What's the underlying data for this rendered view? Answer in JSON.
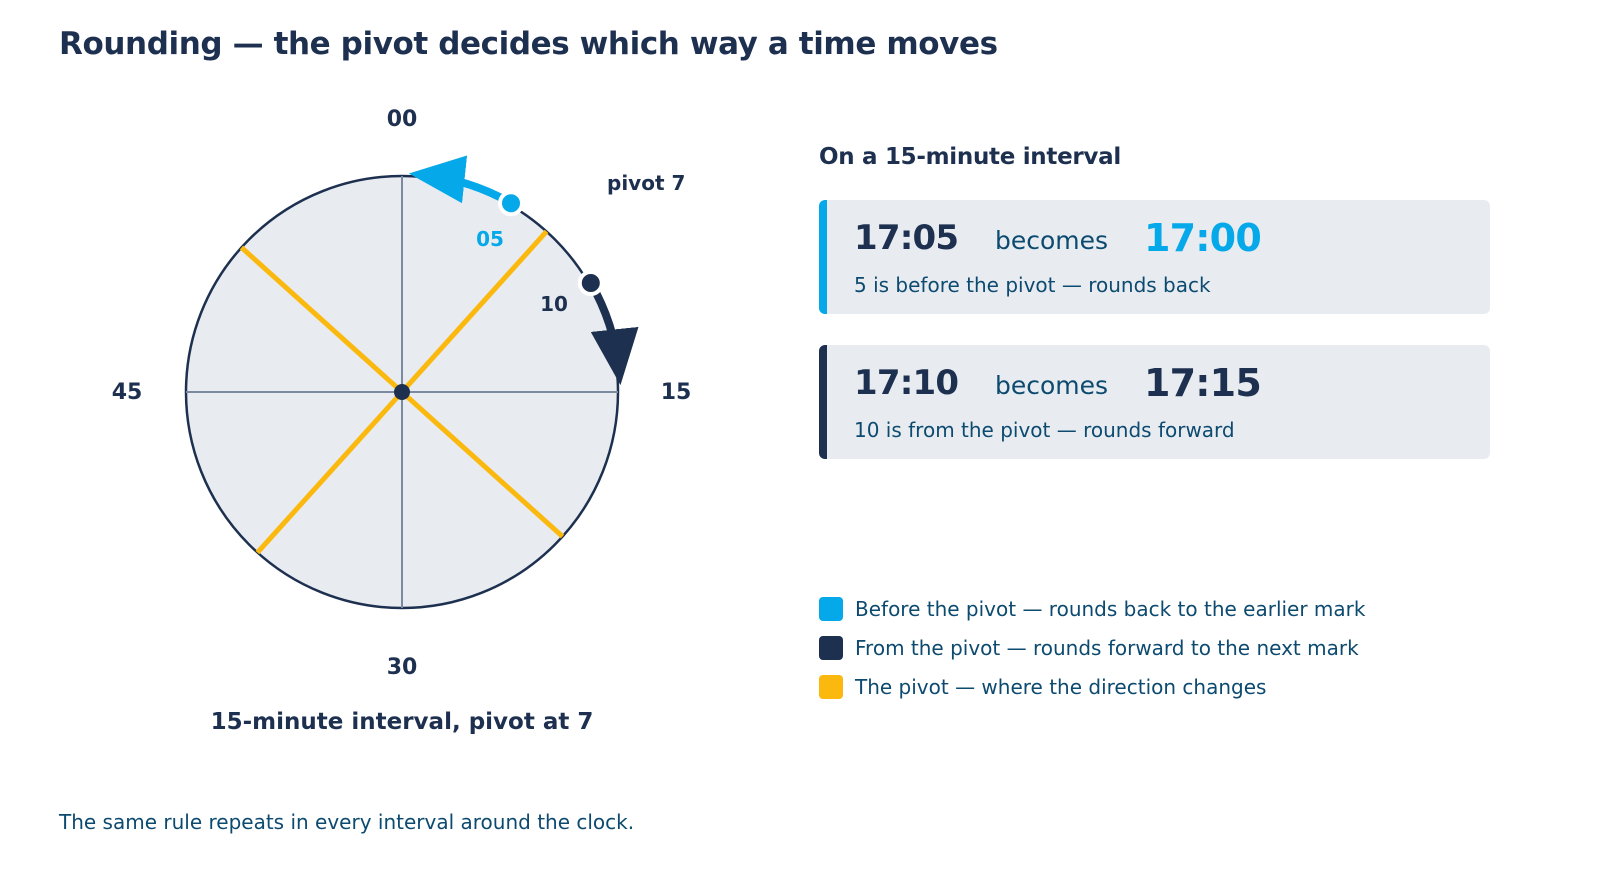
{
  "title": "Rounding — the pivot decides which way a time moves",
  "dial": {
    "quarter_labels": [
      "00",
      "15",
      "30",
      "45"
    ],
    "pivot_label": "pivot 7",
    "back_minute_label": "05",
    "forward_minute_label": "10",
    "caption": "15-minute interval, pivot at 7",
    "interval_minutes": 15,
    "pivot_minute": 7
  },
  "panel": {
    "heading": "On a 15-minute interval",
    "examples": [
      {
        "from": "17:05",
        "verb": "becomes",
        "to": "17:00",
        "note": "5 is before the pivot — rounds back",
        "minute": 5
      },
      {
        "from": "17:10",
        "verb": "becomes",
        "to": "17:15",
        "note": "10 is from the pivot — rounds forward",
        "minute": 10
      }
    ]
  },
  "legend": [
    {
      "label": "Before the pivot — rounds back to the earlier mark",
      "color": "#05a8e8"
    },
    {
      "label": "From the pivot — rounds forward to the next mark",
      "color": "#1e3050"
    },
    {
      "label": "The pivot — where the direction changes",
      "color": "#fbb90f"
    }
  ],
  "footnote": "The same rule repeats in every interval around the clock.",
  "colors": {
    "back": "#05a8e8",
    "forward": "#1e3050",
    "pivot": "#fbb90f",
    "dial_face": "#e8ecf0",
    "tick": "#7c8aa0"
  }
}
